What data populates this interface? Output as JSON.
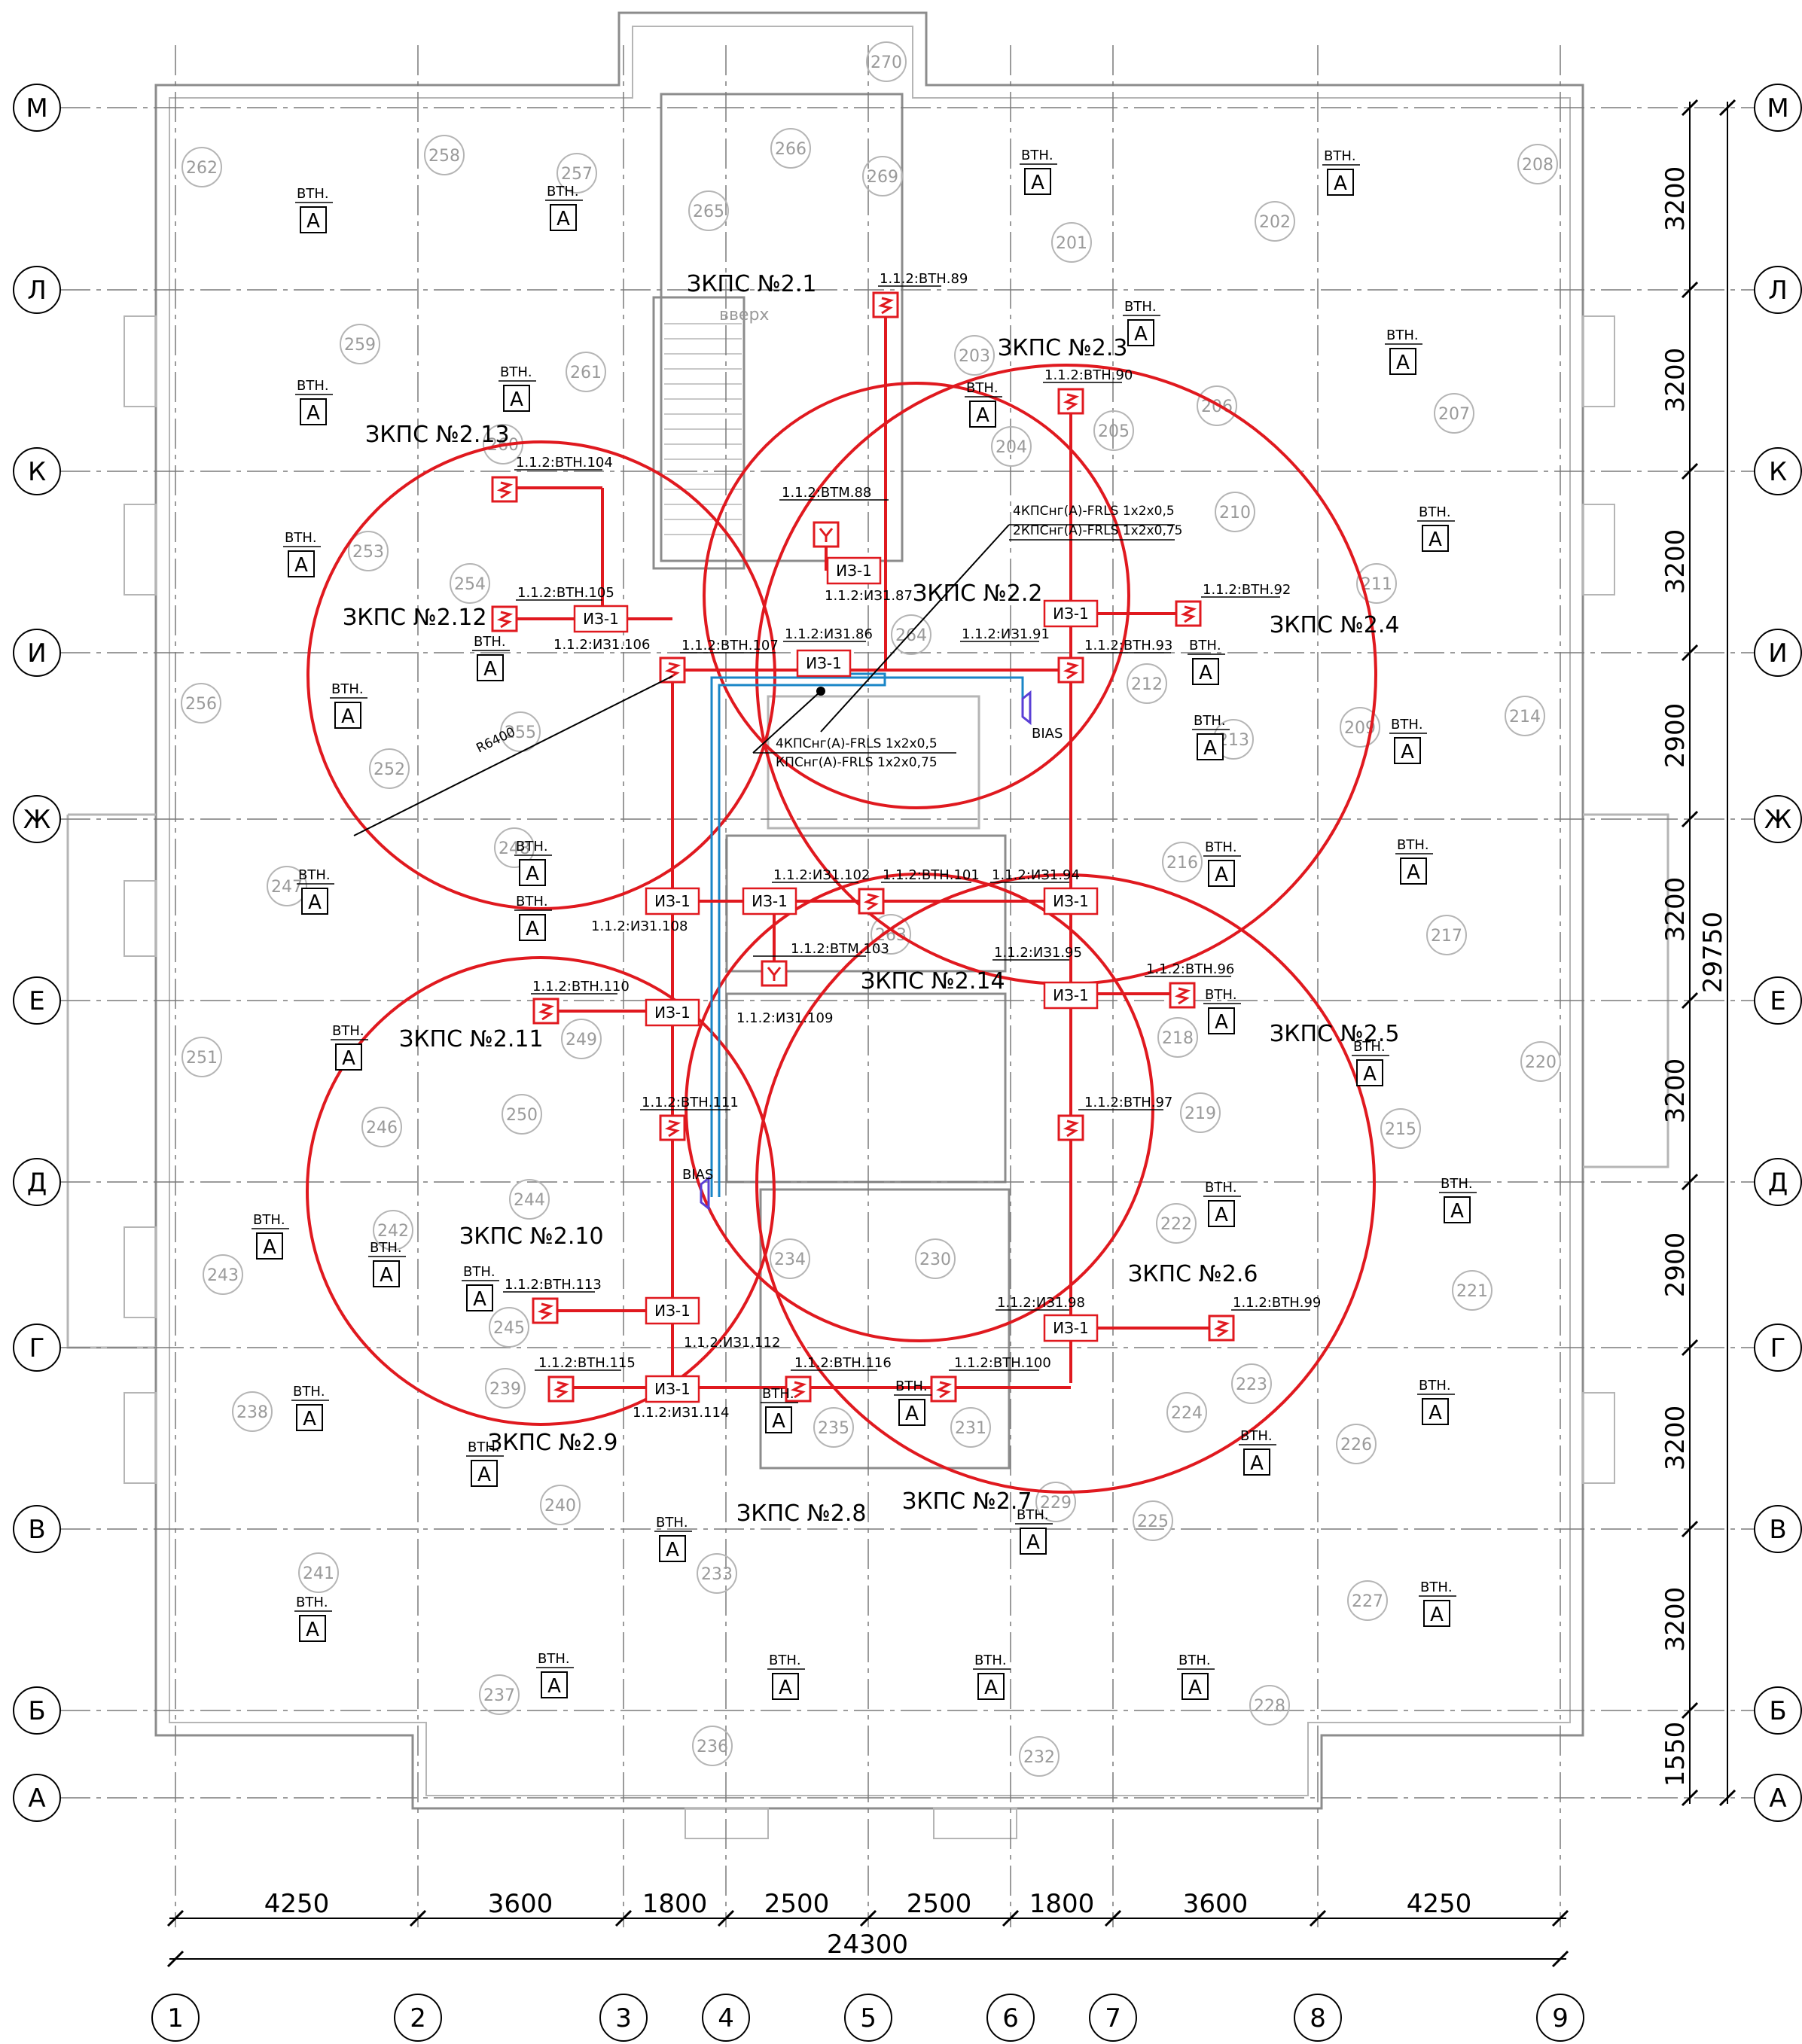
{
  "axes_rows": [
    "М",
    "Л",
    "К",
    "И",
    "Ж",
    "Е",
    "Д",
    "Г",
    "В",
    "Б",
    "А"
  ],
  "axes_cols": [
    "1",
    "2",
    "3",
    "4",
    "5",
    "6",
    "7",
    "8",
    "9"
  ],
  "dims_bottom": [
    "4250",
    "3600",
    "1800",
    "2500",
    "2500",
    "1800",
    "3600",
    "4250"
  ],
  "dim_total_bottom": "24300",
  "dims_right": [
    "3200",
    "3200",
    "3200",
    "2900",
    "3200",
    "3200",
    "2900",
    "3200",
    "3200",
    "1550"
  ],
  "dim_total_right": "29750",
  "zones": [
    "ЗКПС №2.1",
    "ЗКПС №2.2",
    "ЗКПС №2.3",
    "ЗКПС №2.4",
    "ЗКПС №2.5",
    "ЗКПС №2.6",
    "ЗКПС №2.7",
    "ЗКПС №2.8",
    "ЗКПС №2.9",
    "ЗКПС №2.10",
    "ЗКПС №2.11",
    "ЗКПС №2.12",
    "ЗКПС №2.13",
    "ЗКПС №2.14"
  ],
  "rooms": [
    "262",
    "258",
    "257",
    "265",
    "266",
    "270",
    "269",
    "201",
    "202",
    "208",
    "259",
    "261",
    "203",
    "206",
    "207",
    "260",
    "204",
    "205",
    "253",
    "254",
    "210",
    "211",
    "264",
    "212",
    "256",
    "255",
    "252",
    "213",
    "209",
    "214",
    "248",
    "247",
    "216",
    "263",
    "217",
    "249",
    "218",
    "251",
    "250",
    "246",
    "219",
    "220",
    "215",
    "244",
    "242",
    "243",
    "222",
    "234",
    "230",
    "221",
    "245",
    "239",
    "238",
    "235",
    "231",
    "224",
    "223",
    "226",
    "240",
    "229",
    "225",
    "233",
    "241",
    "227",
    "237",
    "236",
    "232",
    "228"
  ],
  "tags": {
    "t89": "1.1.2:ВТН.89",
    "t90": "1.1.2:ВТН.90",
    "t104": "1.1.2:ВТН.104",
    "t88": "1.1.2:ВТМ.88",
    "t87": "1.1.2:ИЗ1.87",
    "t105": "1.1.2:ВТН.105",
    "t106": "1.1.2:ИЗ1.106",
    "t107": "1.1.2:ВТН.107",
    "t86": "1.1.2:ИЗ1.86",
    "t91": "1.1.2:ИЗ1.91",
    "t92": "1.1.2:ВТН.92",
    "t93": "1.1.2:ВТН.93",
    "t102": "1.1.2:ИЗ1.102",
    "t101": "1.1.2:ВТН.101",
    "t94": "1.1.2:ИЗ1.94",
    "t108": "1.1.2:ИЗ1.108",
    "t103": "1.1.2:ВТМ.103",
    "t95": "1.1.2:ИЗ1.95",
    "t96": "1.1.2:ВТН.96",
    "t110": "1.1.2:ВТН.110",
    "t109": "1.1.2:ИЗ1.109",
    "t111": "1.1.2:ВТН.111",
    "t97": "1.1.2:ВТН.97",
    "t98": "1.1.2:ИЗ1.98",
    "t99": "1.1.2:ВТН.99",
    "t113": "1.1.2:ВТН.113",
    "t112": "1.1.2:ИЗ1.112",
    "t115": "1.1.2:ВТН.115",
    "t116": "1.1.2:ВТН.116",
    "t100": "1.1.2:ВТН.100",
    "t114": "1.1.2:ИЗ1.114"
  },
  "isolator_label": "ИЗ-1",
  "vtn_label": "ВТН.",
  "a_label": "А",
  "cable_top_1": "4КПСнг(А)-FRLS 1х2х0,5",
  "cable_top_2": "2КПСнг(А)-FRLS 1х2х0,75",
  "cable_mid_1": "4КПСнг(А)-FRLS 1х2х0,5",
  "cable_mid_2": "КПСнг(А)-FRLS 1х2х0,75",
  "radius_label": "R6400",
  "bias_label": "BIAS",
  "stair_label": "вверх",
  "colors": {
    "red": "#e0191f",
    "blue": "#1a86c7",
    "wall": "#8c8c8c",
    "light": "#b5b5b5",
    "violet": "#5a3fd6"
  }
}
